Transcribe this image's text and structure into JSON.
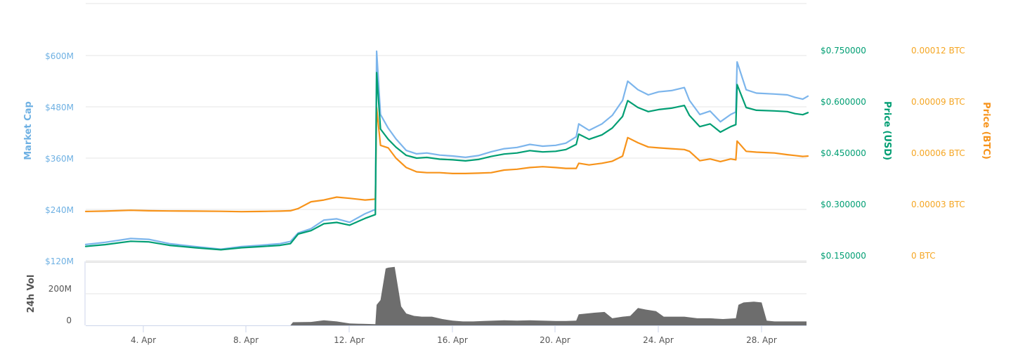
{
  "chart_data": [
    {
      "type": "line",
      "title": "",
      "xlabel": "",
      "x_tick_labels": [
        "4. Apr",
        "8. Apr",
        "12. Apr",
        "16. Apr",
        "20. Apr",
        "24. Apr",
        "28. Apr"
      ],
      "grid": true,
      "legend": "none",
      "axes": {
        "market_cap": {
          "label": "Market Cap",
          "side": "left",
          "color": "#7cb5ec",
          "ticks": [
            "$120M",
            "$240M",
            "$360M",
            "$480M",
            "$600M"
          ],
          "range": [
            120,
            600
          ]
        },
        "price_usd": {
          "label": "Price (USD)",
          "side": "right",
          "color": "#009e73",
          "ticks": [
            "$0.150000",
            "$0.300000",
            "$0.450000",
            "$0.600000",
            "$0.750000"
          ],
          "range": [
            0.15,
            0.75
          ]
        },
        "price_btc": {
          "label": "Price (BTC)",
          "side": "right",
          "color": "#f7931a",
          "ticks": [
            "0 BTC",
            "0.00003 BTC",
            "0.00006 BTC",
            "0.00009 BTC",
            "0.00012 BTC"
          ],
          "range": [
            0,
            0.00012
          ]
        }
      },
      "x_days": [
        1.75,
        2.5,
        3.5,
        4.2,
        5.0,
        6.0,
        7.0,
        7.8,
        8.5,
        9.3,
        9.7,
        10.0,
        10.5,
        11.0,
        11.5,
        12.0,
        12.6,
        13.0,
        13.05,
        13.2,
        13.5,
        13.8,
        14.2,
        14.6,
        15.0,
        15.5,
        16.0,
        16.5,
        17.0,
        17.5,
        18.0,
        18.5,
        19.0,
        19.5,
        20.0,
        20.4,
        20.8,
        20.9,
        21.3,
        21.8,
        22.2,
        22.6,
        22.8,
        23.2,
        23.6,
        24.0,
        24.5,
        25.0,
        25.2,
        25.6,
        26.0,
        26.4,
        26.8,
        27.0,
        27.05,
        27.4,
        27.8,
        28.5,
        29.0,
        29.3,
        29.6,
        29.8
      ],
      "series": [
        {
          "name": "Market Cap",
          "axis": "market_cap",
          "unit": "$M",
          "color": "#7cb5ec",
          "values": [
            158,
            163,
            172,
            170,
            160,
            153,
            147,
            153,
            156,
            160,
            165,
            185,
            195,
            215,
            218,
            210,
            230,
            240,
            610,
            462,
            430,
            405,
            378,
            370,
            372,
            367,
            365,
            362,
            366,
            375,
            382,
            385,
            392,
            388,
            390,
            395,
            410,
            440,
            425,
            440,
            460,
            495,
            540,
            520,
            508,
            515,
            518,
            525,
            495,
            462,
            470,
            445,
            462,
            468,
            585,
            520,
            512,
            510,
            508,
            502,
            498,
            505
          ]
        },
        {
          "name": "Price (USD)",
          "axis": "price_usd",
          "unit": "$",
          "color": "#009e73",
          "values": [
            0.192,
            0.197,
            0.207,
            0.205,
            0.195,
            0.188,
            0.182,
            0.188,
            0.191,
            0.195,
            0.2,
            0.228,
            0.238,
            0.258,
            0.262,
            0.254,
            0.274,
            0.285,
            0.7,
            0.535,
            0.505,
            0.482,
            0.458,
            0.45,
            0.452,
            0.447,
            0.445,
            0.442,
            0.446,
            0.455,
            0.462,
            0.465,
            0.472,
            0.468,
            0.47,
            0.475,
            0.49,
            0.52,
            0.505,
            0.518,
            0.538,
            0.572,
            0.618,
            0.598,
            0.586,
            0.592,
            0.596,
            0.604,
            0.575,
            0.542,
            0.55,
            0.526,
            0.542,
            0.548,
            0.665,
            0.598,
            0.59,
            0.588,
            0.586,
            0.58,
            0.577,
            0.583
          ]
        },
        {
          "name": "Price (BTC)",
          "axis": "price_btc",
          "unit": "BTC",
          "color": "#f7931a",
          "values": [
            2.88e-05,
            2.9e-05,
            2.95e-05,
            2.92e-05,
            2.91e-05,
            2.9e-05,
            2.89e-05,
            2.87e-05,
            2.88e-05,
            2.9e-05,
            2.92e-05,
            3.05e-05,
            3.45e-05,
            3.55e-05,
            3.72e-05,
            3.65e-05,
            3.55e-05,
            3.6e-05,
            8.95e-05,
            6.75e-05,
            6.6e-05,
            6e-05,
            5.45e-05,
            5.2e-05,
            5.15e-05,
            5.15e-05,
            5.1e-05,
            5.1e-05,
            5.12e-05,
            5.15e-05,
            5.3e-05,
            5.35e-05,
            5.45e-05,
            5.5e-05,
            5.45e-05,
            5.4e-05,
            5.4e-05,
            5.7e-05,
            5.6e-05,
            5.7e-05,
            5.82e-05,
            6.12e-05,
            7.2e-05,
            6.9e-05,
            6.65e-05,
            6.6e-05,
            6.55e-05,
            6.5e-05,
            6.4e-05,
            5.85e-05,
            5.95e-05,
            5.8e-05,
            5.95e-05,
            5.9e-05,
            7e-05,
            6.4e-05,
            6.35e-05,
            6.3e-05,
            6.2e-05,
            6.15e-05,
            6.1e-05,
            6.12e-05
          ]
        }
      ]
    },
    {
      "type": "area",
      "title": "",
      "ylabel": "24h Vol",
      "y_tick_labels": [
        "0",
        "200M"
      ],
      "ylim": [
        0,
        380
      ],
      "color": "#6d6d6d",
      "x_days": [
        1.75,
        9.7,
        9.8,
        10.5,
        11.0,
        11.5,
        12.0,
        12.5,
        13.0,
        13.05,
        13.2,
        13.4,
        13.5,
        13.75,
        14.0,
        14.2,
        14.5,
        14.8,
        15.2,
        15.6,
        16.0,
        16.4,
        16.8,
        17.2,
        17.6,
        18.0,
        18.5,
        19.0,
        19.5,
        20.0,
        20.4,
        20.8,
        20.9,
        21.5,
        21.9,
        22.2,
        22.6,
        22.9,
        23.2,
        23.5,
        23.9,
        24.2,
        24.6,
        25.0,
        25.5,
        26.0,
        26.5,
        27.0,
        27.1,
        27.3,
        27.7,
        28.0,
        28.2,
        28.5,
        29.0,
        29.8
      ],
      "values": [
        0,
        0,
        20,
        22,
        32,
        25,
        12,
        10,
        8,
        130,
        160,
        360,
        365,
        370,
        120,
        75,
        60,
        55,
        55,
        40,
        30,
        25,
        25,
        28,
        30,
        32,
        30,
        32,
        30,
        28,
        28,
        30,
        70,
        80,
        85,
        45,
        55,
        60,
        110,
        100,
        90,
        55,
        55,
        55,
        45,
        45,
        40,
        45,
        130,
        145,
        150,
        145,
        30,
        25,
        25,
        25
      ]
    }
  ],
  "panels": {
    "main": {
      "left_axis_label": "Market Cap",
      "left_ticks": [
        "$600M",
        "$480M",
        "$360M",
        "$240M",
        "$120M"
      ],
      "usd_axis_label": "Price (USD)",
      "usd_ticks": [
        "$0.750000",
        "$0.600000",
        "$0.450000",
        "$0.300000",
        "$0.150000"
      ],
      "btc_axis_label": "Price (BTC)",
      "btc_ticks": [
        "0.00012 BTC",
        "0.00009 BTC",
        "0.00006 BTC",
        "0.00003 BTC",
        "0 BTC"
      ]
    },
    "volume": {
      "axis_label": "24h Vol",
      "ticks": [
        "200M",
        "0"
      ]
    },
    "x_axis": {
      "ticks": [
        "4. Apr",
        "8. Apr",
        "12. Apr",
        "16. Apr",
        "20. Apr",
        "24. Apr",
        "28. Apr"
      ]
    }
  },
  "colors": {
    "market_cap": "#7cb5ec",
    "market_cap_label": "#6fb1e3",
    "price_usd": "#009e73",
    "price_btc": "#f7931a",
    "btc_label": "#f5a623",
    "volume": "#6d6d6d",
    "volume_label": "#555555",
    "grid": "#e6e6e6",
    "axis_line": "#ccd6eb",
    "tick_text": "#666666"
  }
}
